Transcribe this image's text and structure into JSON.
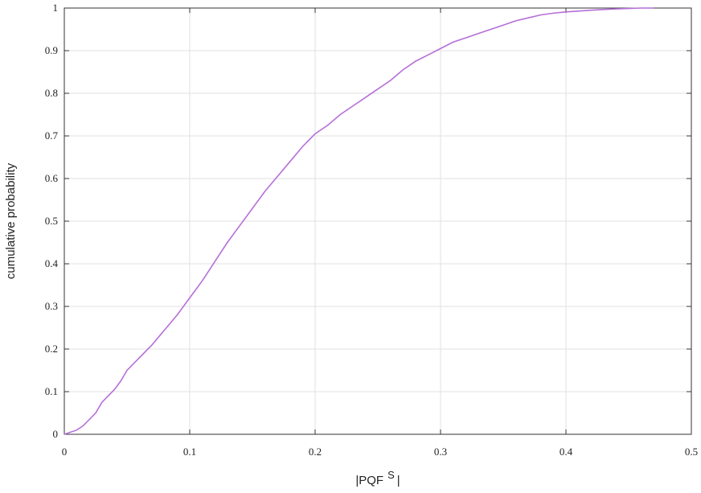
{
  "chart_data": {
    "type": "line",
    "xlabel": {
      "text": "|PQF",
      "superscript": "S",
      "suffix": "|"
    },
    "ylabel": "cumulative probability",
    "x": [
      0,
      0.01,
      0.015,
      0.025,
      0.03,
      0.04,
      0.045,
      0.05,
      0.06,
      0.07,
      0.08,
      0.09,
      0.1,
      0.11,
      0.12,
      0.13,
      0.14,
      0.15,
      0.16,
      0.17,
      0.18,
      0.19,
      0.2,
      0.21,
      0.22,
      0.23,
      0.24,
      0.25,
      0.26,
      0.27,
      0.28,
      0.29,
      0.3,
      0.31,
      0.32,
      0.33,
      0.34,
      0.35,
      0.36,
      0.37,
      0.38,
      0.39,
      0.4,
      0.42,
      0.44,
      0.46,
      0.47
    ],
    "series": [
      {
        "color": "#b66fd8",
        "values": [
          0,
          0.01,
          0.02,
          0.05,
          0.075,
          0.105,
          0.125,
          0.15,
          0.18,
          0.21,
          0.245,
          0.28,
          0.32,
          0.36,
          0.405,
          0.45,
          0.49,
          0.53,
          0.57,
          0.605,
          0.64,
          0.675,
          0.705,
          0.725,
          0.75,
          0.77,
          0.79,
          0.81,
          0.83,
          0.855,
          0.875,
          0.89,
          0.905,
          0.92,
          0.93,
          0.94,
          0.95,
          0.96,
          0.97,
          0.977,
          0.984,
          0.988,
          0.991,
          0.995,
          0.998,
          1,
          1
        ]
      }
    ],
    "xlim": [
      0,
      0.5
    ],
    "ylim": [
      0,
      1
    ],
    "xticks": [
      0,
      0.1,
      0.2,
      0.3,
      0.4,
      0.5
    ],
    "yticks": [
      0,
      0.1,
      0.2,
      0.3,
      0.4,
      0.5,
      0.6,
      0.7,
      0.8,
      0.9,
      1
    ],
    "grid": true
  }
}
